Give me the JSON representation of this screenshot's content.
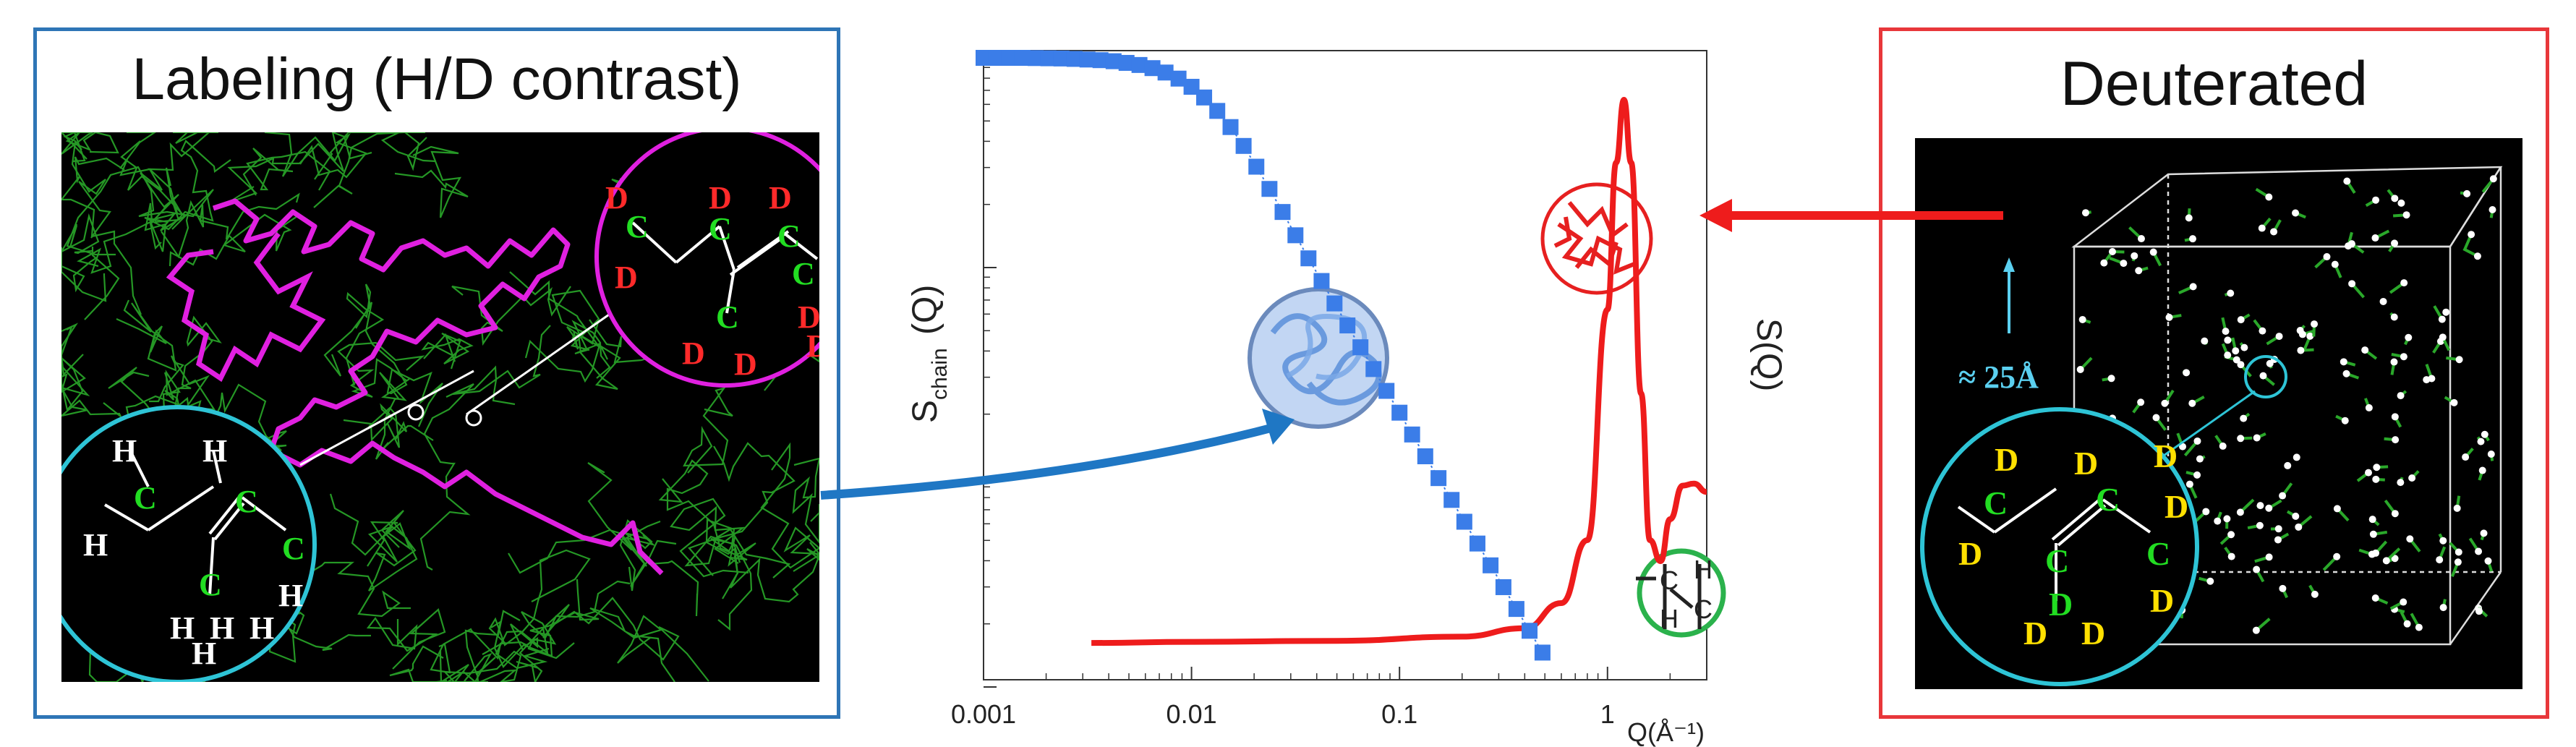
{
  "left_panel": {
    "title": "Labeling (H/D contrast)",
    "upper_circle_atoms": [
      "D",
      "D",
      "D",
      "C",
      "C",
      "C",
      "D",
      "D",
      "C",
      "D",
      "D",
      "C",
      "D"
    ],
    "lower_circle_atoms": [
      "H",
      "H",
      "C",
      "H",
      "C",
      "H",
      "C",
      "H",
      "H",
      "C",
      "H",
      "H",
      "H"
    ]
  },
  "right_panel": {
    "title": "Deuterated",
    "scale_label": "≈ 25Å",
    "circle_atoms": [
      "D",
      "D",
      "D",
      "C",
      "D",
      "C",
      "D",
      "C",
      "D",
      "D",
      "C",
      "D",
      "D"
    ]
  },
  "colors": {
    "left_frame": "#2e75b6",
    "right_frame": "#e8373a",
    "chain_series": "#3b7de8",
    "total_series": "#ee1c1c",
    "chain_pink": "#e020e0",
    "network_green": "#2aa82a"
  },
  "inset_labels": [
    "H",
    "C",
    "C",
    "H"
  ],
  "chart_data": {
    "type": "line",
    "xscale": "log",
    "yscale": "log",
    "xlim": [
      0.001,
      3
    ],
    "xticks": [
      "0.001",
      "0.01",
      "0.1",
      "1"
    ],
    "xlabel": "Q(Å⁻¹)",
    "ylabel_left": "S",
    "ylabel_left_sub": "chain",
    "ylabel_left_arg": "(Q)",
    "ylabel_right": "S(Q)",
    "series": [
      {
        "name": "",
        "marker": "square",
        "x": [
          0.001,
          0.00115,
          0.00133,
          0.00154,
          0.00178,
          0.00205,
          0.00237,
          0.00274,
          0.00316,
          0.00365,
          0.00422,
          0.00487,
          0.00562,
          0.00649,
          0.0075,
          0.00866,
          0.01,
          0.0115,
          0.0133,
          0.0154,
          0.0178,
          0.0205,
          0.0237,
          0.0274,
          0.0316,
          0.0365,
          0.0422,
          0.0487,
          0.0562,
          0.0649,
          0.075,
          0.0866,
          0.1,
          0.115,
          0.133,
          0.154,
          0.178,
          0.205,
          0.237,
          0.274,
          0.316,
          0.365,
          0.422,
          0.487
        ],
        "y_decades_below_top": [
          0,
          0,
          0,
          0,
          0.001,
          0.002,
          0.003,
          0.005,
          0.008,
          0.011,
          0.016,
          0.024,
          0.034,
          0.049,
          0.07,
          0.099,
          0.138,
          0.189,
          0.253,
          0.33,
          0.42,
          0.519,
          0.625,
          0.735,
          0.846,
          0.956,
          1.064,
          1.171,
          1.276,
          1.38,
          1.484,
          1.588,
          1.692,
          1.796,
          1.9,
          2.004,
          2.108,
          2.212,
          2.316,
          2.42,
          2.524,
          2.628,
          2.732,
          2.836
        ]
      },
      {
        "name": "",
        "marker": "none",
        "x": [
          0.0033,
          0.01,
          0.05,
          0.2,
          0.4,
          0.6,
          0.8,
          1.0,
          1.1,
          1.2,
          1.3,
          1.45,
          1.6,
          1.8,
          2.0,
          2.3,
          2.6,
          3.0
        ],
        "y_decades_below_top": [
          2.79,
          2.785,
          2.78,
          2.76,
          2.72,
          2.6,
          2.3,
          1.2,
          0.5,
          0.2,
          0.5,
          1.6,
          2.3,
          2.4,
          2.2,
          2.04,
          2.03,
          2.07
        ]
      }
    ]
  }
}
